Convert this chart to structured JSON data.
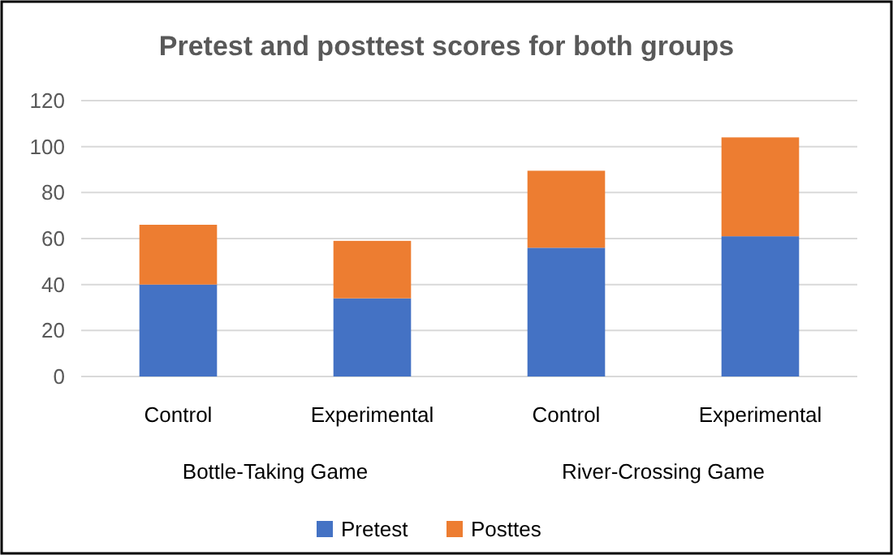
{
  "chart_data": {
    "type": "bar",
    "title": "Pretest and posttest scores for both groups",
    "categories": [
      "Control",
      "Experimental",
      "Control",
      "Experimental"
    ],
    "stacked": true,
    "series": [
      {
        "name": "Pretest",
        "color": "#4472c4",
        "values": [
          40,
          34,
          56,
          61
        ]
      },
      {
        "name": "Posttes",
        "color": "#ed7d31",
        "values": [
          26,
          25,
          33.5,
          43
        ]
      }
    ],
    "ylim": [
      0,
      120
    ],
    "yticks": [
      0,
      20,
      40,
      60,
      80,
      100,
      120
    ],
    "grid": "y",
    "legend": "bottom",
    "annotations": [
      "Bottle-Taking Game",
      "River-Crossing Game"
    ]
  }
}
